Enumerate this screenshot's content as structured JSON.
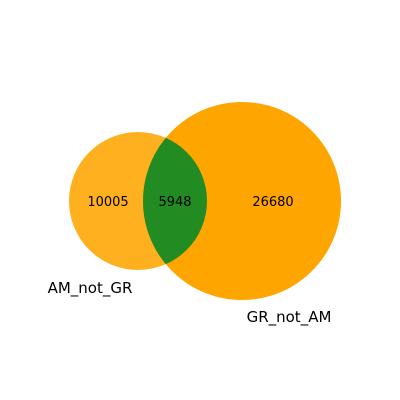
{
  "venn": {
    "sets": [
      {
        "name": "AM_not_GR",
        "color": "#FFA500"
      },
      {
        "name": "GR_not_AM",
        "color": "#FFA500"
      }
    ],
    "regions": {
      "left_only": "10005",
      "overlap": "5948",
      "right_only": "26680"
    },
    "overlap_color": "#228B22"
  }
}
